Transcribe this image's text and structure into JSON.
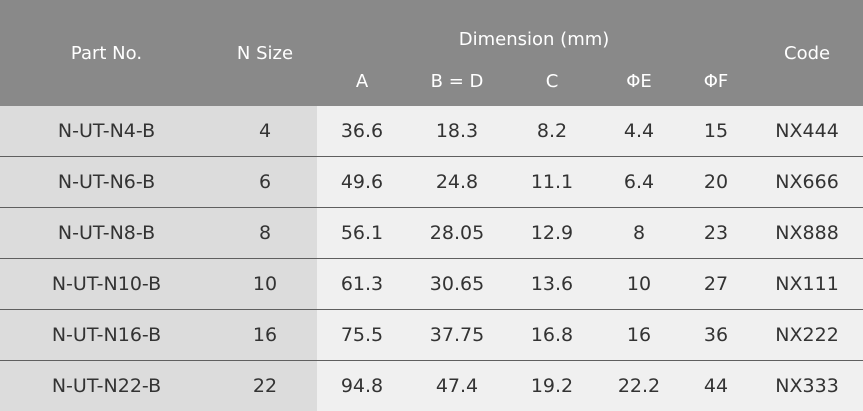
{
  "header": {
    "part_no": "Part No.",
    "n_size": "N Size",
    "dimension_group": "Dimension (mm)",
    "code": "Code",
    "dimensions": [
      "A",
      "B = D",
      "C",
      "ΦE",
      "ΦF"
    ]
  },
  "rows": [
    {
      "part": "N-UT-N4-B",
      "size": "4",
      "a": "36.6",
      "bd": "18.3",
      "c": "8.2",
      "e": "4.4",
      "f": "15",
      "code": "NX444"
    },
    {
      "part": "N-UT-N6-B",
      "size": "6",
      "a": "49.6",
      "bd": "24.8",
      "c": "11.1",
      "e": "6.4",
      "f": "20",
      "code": "NX666"
    },
    {
      "part": "N-UT-N8-B",
      "size": "8",
      "a": "56.1",
      "bd": "28.05",
      "c": "12.9",
      "e": "8",
      "f": "23",
      "code": "NX888"
    },
    {
      "part": "N-UT-N10-B",
      "size": "10",
      "a": "61.3",
      "bd": "30.65",
      "c": "13.6",
      "e": "10",
      "f": "27",
      "code": "NX111"
    },
    {
      "part": "N-UT-N16-B",
      "size": "16",
      "a": "75.5",
      "bd": "37.75",
      "c": "16.8",
      "e": "16",
      "f": "36",
      "code": "NX222"
    },
    {
      "part": "N-UT-N22-B",
      "size": "22",
      "a": "94.8",
      "bd": "47.4",
      "c": "19.2",
      "e": "22.2",
      "f": "44",
      "code": "NX333"
    }
  ]
}
